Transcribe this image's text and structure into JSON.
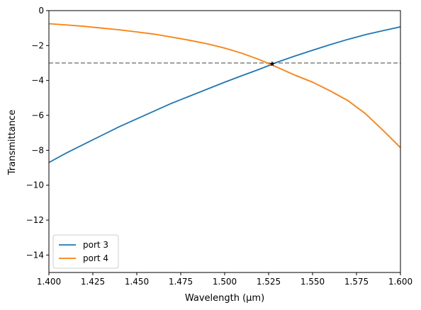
{
  "chart_data": {
    "type": "line",
    "title": "",
    "xlabel": "Wavelength (μm)",
    "ylabel": "Transmittance",
    "xlim": [
      1.4,
      1.6
    ],
    "ylim": [
      -15,
      0
    ],
    "xticks": [
      "1.400",
      "1.425",
      "1.450",
      "1.475",
      "1.500",
      "1.525",
      "1.550",
      "1.575",
      "1.600"
    ],
    "yticks": [
      "0",
      "−2",
      "−4",
      "−6",
      "−8",
      "−10",
      "−12",
      "−14"
    ],
    "grid": false,
    "legend_position": "lower-left",
    "series": [
      {
        "name": "port 3",
        "color": "#1f77b4",
        "x": [
          1.4,
          1.41,
          1.42,
          1.43,
          1.44,
          1.45,
          1.46,
          1.47,
          1.48,
          1.49,
          1.5,
          1.51,
          1.52,
          1.53,
          1.54,
          1.55,
          1.56,
          1.57,
          1.58,
          1.59,
          1.6
        ],
        "y": [
          -8.7,
          -8.15,
          -7.65,
          -7.15,
          -6.65,
          -6.2,
          -5.75,
          -5.3,
          -4.9,
          -4.5,
          -4.1,
          -3.72,
          -3.35,
          -2.95,
          -2.6,
          -2.27,
          -1.95,
          -1.65,
          -1.38,
          -1.15,
          -0.93
        ]
      },
      {
        "name": "port 4",
        "color": "#ff7f0e",
        "x": [
          1.4,
          1.41,
          1.42,
          1.43,
          1.44,
          1.45,
          1.46,
          1.47,
          1.48,
          1.49,
          1.5,
          1.51,
          1.52,
          1.53,
          1.54,
          1.55,
          1.56,
          1.57,
          1.58,
          1.59,
          1.6
        ],
        "y": [
          -0.75,
          -0.82,
          -0.9,
          -1.0,
          -1.1,
          -1.22,
          -1.35,
          -1.52,
          -1.7,
          -1.9,
          -2.15,
          -2.45,
          -2.82,
          -3.25,
          -3.7,
          -4.1,
          -4.6,
          -5.15,
          -5.9,
          -6.85,
          -7.85
        ]
      }
    ],
    "reference_line": {
      "y": -3,
      "style": "dashed",
      "color": "#808080"
    },
    "marker": {
      "x": 1.527,
      "y": -3.05,
      "symbol": "star",
      "color": "#000000"
    }
  }
}
